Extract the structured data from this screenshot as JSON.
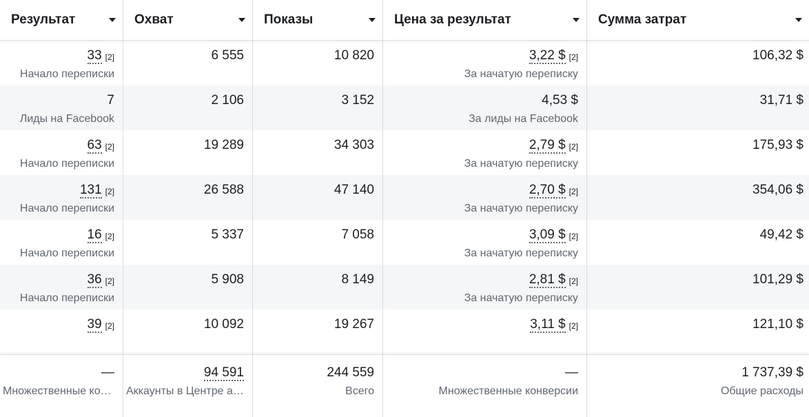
{
  "headers": [
    "Результат",
    "Охват",
    "Показы",
    "Цена за результат",
    "Сумма затрат"
  ],
  "rows": [
    {
      "result": "33",
      "result_fn": "[2]",
      "result_sub": "Начало переписки",
      "reach": "6 555",
      "impr": "10 820",
      "cpr": "3,22 $",
      "cpr_fn": "[2]",
      "cpr_sub": "За начатую переписку",
      "spend": "106,32 $"
    },
    {
      "result": "7",
      "result_fn": "",
      "result_sub": "Лиды на Facebook",
      "reach": "2 106",
      "impr": "3 152",
      "cpr": "4,53 $",
      "cpr_fn": "",
      "cpr_sub": "За лиды на Facebook",
      "spend": "31,71 $"
    },
    {
      "result": "63",
      "result_fn": "[2]",
      "result_sub": "Начало переписки",
      "reach": "19 289",
      "impr": "34 303",
      "cpr": "2,79 $",
      "cpr_fn": "[2]",
      "cpr_sub": "За начатую переписку",
      "spend": "175,93 $"
    },
    {
      "result": "131",
      "result_fn": "[2]",
      "result_sub": "Начало переписки",
      "reach": "26 588",
      "impr": "47 140",
      "cpr": "2,70 $",
      "cpr_fn": "[2]",
      "cpr_sub": "За начатую переписку",
      "spend": "354,06 $"
    },
    {
      "result": "16",
      "result_fn": "[2]",
      "result_sub": "Начало переписки",
      "reach": "5 337",
      "impr": "7 058",
      "cpr": "3,09 $",
      "cpr_fn": "[2]",
      "cpr_sub": "За начатую переписку",
      "spend": "49,42 $"
    },
    {
      "result": "36",
      "result_fn": "[2]",
      "result_sub": "Начало переписки",
      "reach": "5 908",
      "impr": "8 149",
      "cpr": "2,81 $",
      "cpr_fn": "[2]",
      "cpr_sub": "За начатую переписку",
      "spend": "101,29 $"
    },
    {
      "result": "39",
      "result_fn": "[2]",
      "result_sub": "",
      "reach": "10 092",
      "impr": "19 267",
      "cpr": "3,11 $",
      "cpr_fn": "[2]",
      "cpr_sub": "",
      "spend": "121,10 $"
    }
  ],
  "totals": {
    "result": "—",
    "result_sub": "Множественные конверсии",
    "reach": "94 591",
    "reach_sub": "Аккаунты в Центре аккаунтов",
    "impr": "244 559",
    "impr_sub": "Всего",
    "cpr": "—",
    "cpr_sub": "Множественные конверсии",
    "spend": "1 737,39 $",
    "spend_sub": "Общие расходы"
  }
}
